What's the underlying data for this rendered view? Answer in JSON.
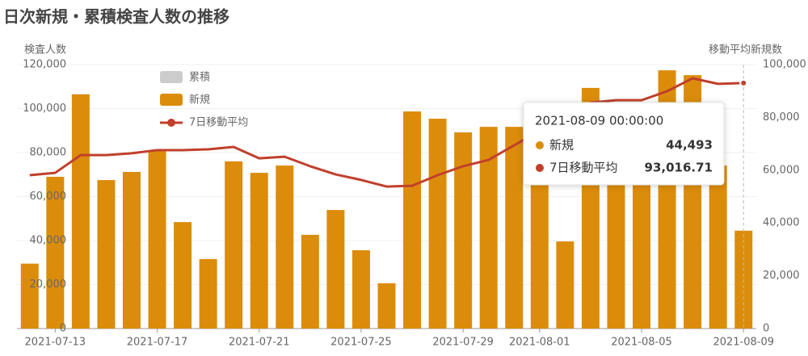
{
  "chart_data": {
    "type": "bar_line",
    "title": "日次新規・累積検査人数の推移",
    "ylabel": "検査人数",
    "y2label": "移動平均新規数",
    "categories": [
      "2021-07-12",
      "2021-07-13",
      "2021-07-14",
      "2021-07-15",
      "2021-07-16",
      "2021-07-17",
      "2021-07-18",
      "2021-07-19",
      "2021-07-20",
      "2021-07-21",
      "2021-07-22",
      "2021-07-23",
      "2021-07-24",
      "2021-07-25",
      "2021-07-26",
      "2021-07-27",
      "2021-07-28",
      "2021-07-29",
      "2021-07-30",
      "2021-07-31",
      "2021-08-01",
      "2021-08-02",
      "2021-08-03",
      "2021-08-04",
      "2021-08-05",
      "2021-08-06",
      "2021-08-07",
      "2021-08-08",
      "2021-08-09"
    ],
    "xticks": [
      "2021-07-13",
      "2021-07-17",
      "2021-07-21",
      "2021-07-25",
      "2021-07-29",
      "2021-08-01",
      "2021-08-05",
      "2021-08-09"
    ],
    "legend_inactive": {
      "name": "累積",
      "color": "#cccccc"
    },
    "series": [
      {
        "name": "新規",
        "color": "#dc8c0b",
        "kind": "bar",
        "axis": "y",
        "values": [
          29500,
          69000,
          106500,
          67500,
          71200,
          81100,
          48400,
          31600,
          76000,
          70800,
          74100,
          42600,
          53900,
          35600,
          20600,
          98700,
          95400,
          89200,
          91700,
          91700,
          68000,
          39600,
          109400,
          95000,
          102800,
          117400,
          115200,
          74100,
          44493
        ]
      },
      {
        "name": "7日移動平均",
        "color": "#c0402c",
        "kind": "line",
        "axis": "y2",
        "values": [
          58100,
          59000,
          65700,
          65700,
          66400,
          67600,
          67600,
          67900,
          68800,
          64500,
          65100,
          61500,
          58400,
          56300,
          53800,
          54100,
          58100,
          61500,
          63900,
          69400,
          74900,
          80100,
          85600,
          86500,
          86500,
          89900,
          94800,
          92700,
          93016.71
        ]
      }
    ],
    "ylim": [
      0,
      120000
    ],
    "yticks": [
      0,
      {
        "value": 20000,
        "label": "20,000"
      },
      {
        "value": 40000,
        "label": "40,000"
      },
      {
        "value": 60000,
        "label": "60,000"
      },
      {
        "value": 80000,
        "label": "80,000"
      },
      {
        "value": 100000,
        "label": "100,000"
      },
      {
        "value": 120000,
        "label": "120,000"
      }
    ],
    "y2lim": [
      0,
      100000
    ],
    "y2ticks": [
      0,
      {
        "value": 20000,
        "label": "20,000"
      },
      {
        "value": 40000,
        "label": "40,000"
      },
      {
        "value": 60000,
        "label": "60,000"
      },
      {
        "value": 80000,
        "label": "80,000"
      },
      {
        "value": 100000,
        "label": "100,000"
      }
    ],
    "grid": true,
    "tooltip": {
      "title": "2021-08-09 00:00:00",
      "index": 28,
      "value_labels": [
        "44,493",
        "93,016.71"
      ]
    }
  }
}
